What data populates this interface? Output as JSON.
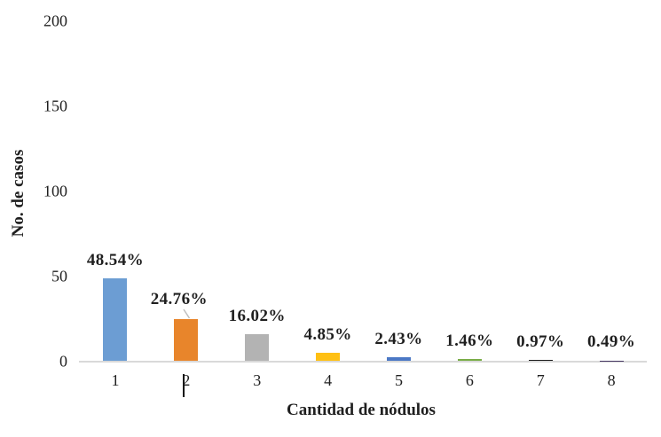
{
  "chart_data": {
    "type": "bar",
    "title": "",
    "xlabel": "Cantidad de nódulos",
    "ylabel": "No. de casos",
    "categories": [
      "1",
      "2",
      "3",
      "4",
      "5",
      "6",
      "7",
      "8"
    ],
    "values": [
      48.54,
      24.76,
      16.02,
      4.85,
      2.43,
      1.46,
      0.97,
      0.49
    ],
    "data_labels": [
      "48.54%",
      "24.76%",
      "16.02%",
      "4.85%",
      "2.43%",
      "1.46%",
      "0.97%",
      "0.49%"
    ],
    "bar_colors": [
      "#6C9DD3",
      "#E8852B",
      "#B3B3B3",
      "#FFC013",
      "#4B78C5",
      "#79AD47",
      "#1A1A1A",
      "#463763"
    ],
    "yticks": [
      0,
      50,
      100,
      150,
      200
    ],
    "ylim": [
      0,
      200
    ],
    "grid": false,
    "legend": "none",
    "axis_line_color": "#D9D9D9",
    "text_color": "#1F1F1F",
    "annotations": {
      "label_2_has_leader_line": true,
      "leader_line_color": "#BFBFBF",
      "stray_text_cursor_over_x_tick": "2"
    }
  }
}
